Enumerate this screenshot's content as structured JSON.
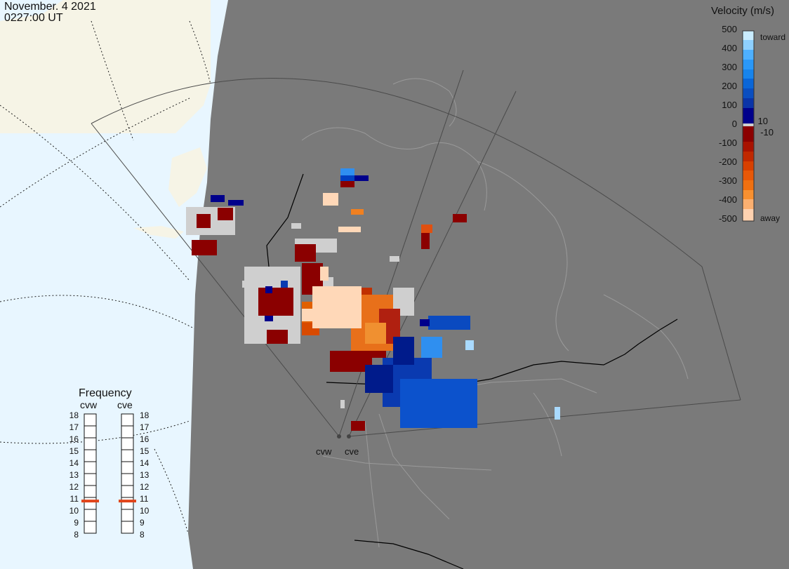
{
  "header": {
    "date": "November. 4 2021",
    "time": "0227:00 UT"
  },
  "velocity_legend": {
    "title": "Velocity (m/s)",
    "toward_label": "toward",
    "away_label": "away",
    "ticks": [
      "500",
      "400",
      "300",
      "200",
      "100",
      "10",
      "0",
      "-10",
      "-100",
      "-200",
      "-300",
      "-400",
      "-500"
    ]
  },
  "frequency_panel": {
    "title": "Frequency",
    "radar_left": "cvw",
    "radar_right": "cve",
    "ticks": [
      "18",
      "17",
      "16",
      "15",
      "14",
      "13",
      "12",
      "11",
      "10",
      "9",
      "8"
    ],
    "cvw_frequency_mhz": 10.7,
    "cve_frequency_mhz": 10.7,
    "marker_color": "#e0441a"
  },
  "radar_labels": {
    "west": "cvw",
    "east": "cve"
  },
  "colors": {
    "land": "#7a7a7a",
    "ocean": "#e8f6ff",
    "ground_scatter": "#cfcfcf"
  }
}
